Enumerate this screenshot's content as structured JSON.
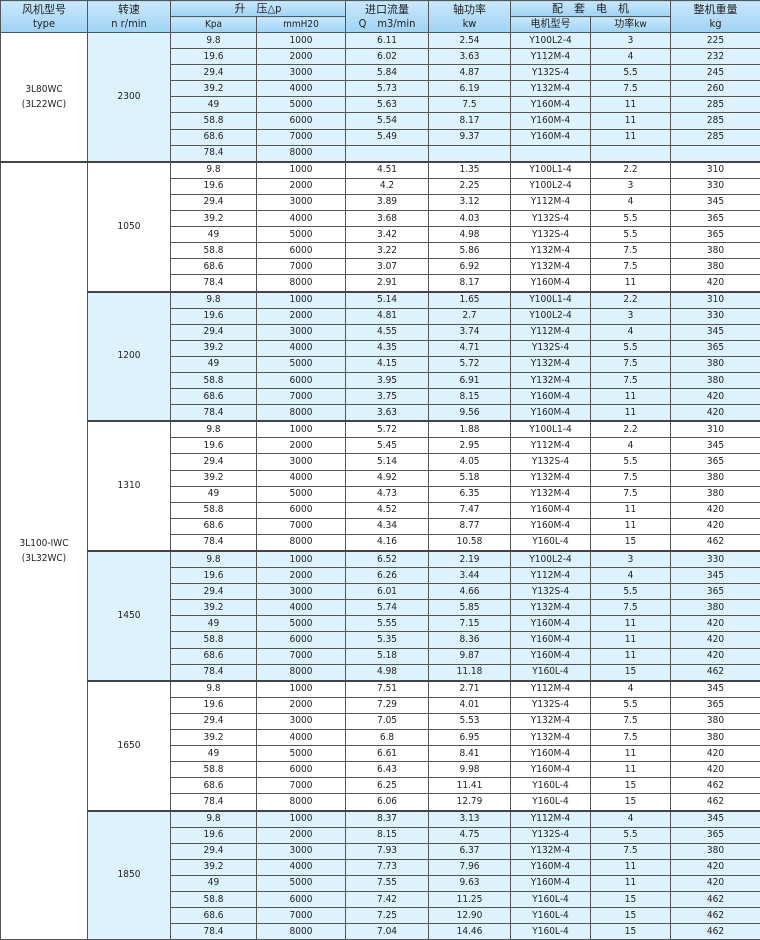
{
  "header": {
    "type_cn": "风机型号",
    "type_en": "type",
    "speed_cn": "转速",
    "speed_en": "n r/min",
    "pressure": "升　压△p",
    "kpa": "Kpa",
    "mmh2o": "mmH20",
    "flow_cn": "进口流量",
    "flow_en": "Q　m3/min",
    "shaft_cn": "轴功率",
    "shaft_en": "kw",
    "motor": "配　套　电　机",
    "motor_model": "电机型号",
    "motor_power": "功率kw",
    "weight_cn": "整机重量",
    "weight_en": "kg"
  },
  "kpa": [
    "9.8",
    "19.6",
    "29.4",
    "39.2",
    "49",
    "58.8",
    "68.6",
    "78.4"
  ],
  "mmh2o": [
    "1000",
    "2000",
    "3000",
    "4000",
    "5000",
    "6000",
    "7000",
    "8000"
  ],
  "colors": {
    "band": "#dcf2fd",
    "header": "#a6d8f7"
  },
  "types": [
    {
      "name": "3L80WC\n(3L22WC)",
      "groups": [
        0
      ]
    },
    {
      "name": "3L100-ⅠWC\n(3L32WC)",
      "groups": [
        1,
        2,
        3,
        4,
        5,
        6
      ]
    }
  ],
  "groups": [
    {
      "speed": "2300",
      "q": [
        "6.11",
        "6.02",
        "5.84",
        "5.73",
        "5.63",
        "5.54",
        "5.49",
        ""
      ],
      "kw": [
        "2.54",
        "3.63",
        "4.87",
        "6.19",
        "7.5",
        "8.17",
        "9.37",
        ""
      ],
      "motor": [
        "Y100L2-4",
        "Y112M-4",
        "Y132S-4",
        "Y132M-4",
        "Y160M-4",
        "Y160M-4",
        "Y160M-4",
        ""
      ],
      "power": [
        "3",
        "4",
        "5.5",
        "7.5",
        "11",
        "11",
        "11",
        ""
      ],
      "weight": [
        "225",
        "232",
        "245",
        "260",
        "285",
        "285",
        "285",
        ""
      ]
    },
    {
      "speed": "1050",
      "q": [
        "4.51",
        "4.2",
        "3.89",
        "3.68",
        "3.42",
        "3.22",
        "3.07",
        "2.91"
      ],
      "kw": [
        "1.35",
        "2.25",
        "3.12",
        "4.03",
        "4.98",
        "5.86",
        "6.92",
        "8.17"
      ],
      "motor": [
        "Y100L1-4",
        "Y100L2-4",
        "Y112M-4",
        "Y132S-4",
        "Y132S-4",
        "Y132M-4",
        "Y132M-4",
        "Y160M-4"
      ],
      "power": [
        "2.2",
        "3",
        "4",
        "5.5",
        "5.5",
        "7.5",
        "7.5",
        "11"
      ],
      "weight": [
        "310",
        "330",
        "345",
        "365",
        "365",
        "380",
        "380",
        "420"
      ]
    },
    {
      "speed": "1200",
      "q": [
        "5.14",
        "4.81",
        "4.55",
        "4.35",
        "4.15",
        "3.95",
        "3.75",
        "3.63"
      ],
      "kw": [
        "1.65",
        "2.7",
        "3.74",
        "4.71",
        "5.72",
        "6.91",
        "8.15",
        "9.56"
      ],
      "motor": [
        "Y100L1-4",
        "Y100L2-4",
        "Y112M-4",
        "Y132S-4",
        "Y132M-4",
        "Y132M-4",
        "Y160M-4",
        "Y160M-4"
      ],
      "power": [
        "2.2",
        "3",
        "4",
        "5.5",
        "7.5",
        "7.5",
        "11",
        "11"
      ],
      "weight": [
        "310",
        "330",
        "345",
        "365",
        "380",
        "380",
        "420",
        "420"
      ]
    },
    {
      "speed": "1310",
      "q": [
        "5.72",
        "5.45",
        "5.14",
        "4.92",
        "4.73",
        "4.52",
        "4.34",
        "4.16"
      ],
      "kw": [
        "1.88",
        "2.95",
        "4.05",
        "5.18",
        "6.35",
        "7.47",
        "8.77",
        "10.58"
      ],
      "motor": [
        "Y100L1-4",
        "Y112M-4",
        "Y132S-4",
        "Y132M-4",
        "Y132M-4",
        "Y160M-4",
        "Y160M-4",
        "Y160L-4"
      ],
      "power": [
        "2.2",
        "4",
        "5.5",
        "7.5",
        "7.5",
        "11",
        "11",
        "15"
      ],
      "weight": [
        "310",
        "345",
        "365",
        "380",
        "380",
        "420",
        "420",
        "462"
      ]
    },
    {
      "speed": "1450",
      "q": [
        "6.52",
        "6.26",
        "6.01",
        "5.74",
        "5.55",
        "5.35",
        "5.18",
        "4.98"
      ],
      "kw": [
        "2.19",
        "3.44",
        "4.66",
        "5.85",
        "7.15",
        "8.36",
        "9.87",
        "11.18"
      ],
      "motor": [
        "Y100L2-4",
        "Y112M-4",
        "Y132S-4",
        "Y132M-4",
        "Y160M-4",
        "Y160M-4",
        "Y160M-4",
        "Y160L-4"
      ],
      "power": [
        "3",
        "4",
        "5.5",
        "7.5",
        "11",
        "11",
        "11",
        "15"
      ],
      "weight": [
        "330",
        "345",
        "365",
        "380",
        "420",
        "420",
        "420",
        "462"
      ]
    },
    {
      "speed": "1650",
      "q": [
        "7.51",
        "7.29",
        "7.05",
        "6.8",
        "6.61",
        "6.43",
        "6.25",
        "6.06"
      ],
      "kw": [
        "2.71",
        "4.01",
        "5.53",
        "6.95",
        "8.41",
        "9.98",
        "11.41",
        "12.79"
      ],
      "motor": [
        "Y112M-4",
        "Y132S-4",
        "Y132M-4",
        "Y132M-4",
        "Y160M-4",
        "Y160M-4",
        "Y160L-4",
        "Y160L-4"
      ],
      "power": [
        "4",
        "5.5",
        "7.5",
        "7.5",
        "11",
        "11",
        "15",
        "15"
      ],
      "weight": [
        "345",
        "365",
        "380",
        "380",
        "420",
        "420",
        "462",
        "462"
      ]
    },
    {
      "speed": "1850",
      "q": [
        "8.37",
        "8.15",
        "7.93",
        "7.73",
        "7.55",
        "7.42",
        "7.25",
        "7.04"
      ],
      "kw": [
        "3.13",
        "4.75",
        "6.37",
        "7.96",
        "9.63",
        "11.25",
        "12.90",
        "14.46"
      ],
      "motor": [
        "Y112M-4",
        "Y132S-4",
        "Y132M-4",
        "Y160M-4",
        "Y160M-4",
        "Y160L-4",
        "Y160L-4",
        "Y160L-4"
      ],
      "power": [
        "4",
        "5.5",
        "7.5",
        "11",
        "11",
        "15",
        "15",
        "15"
      ],
      "weight": [
        "345",
        "365",
        "380",
        "420",
        "420",
        "462",
        "462",
        "462"
      ]
    }
  ]
}
